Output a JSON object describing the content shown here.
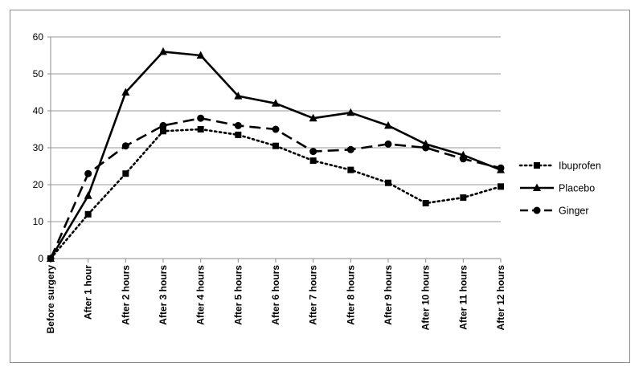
{
  "chart_data": {
    "type": "line",
    "title": "",
    "xlabel": "",
    "ylabel": "",
    "categories": [
      "Before surgery",
      "After 1 hour",
      "After 2 hours",
      "After 3 hours",
      "After 4 hours",
      "After 5 hours",
      "After 6 hours",
      "After 7 hours",
      "After 8 hours",
      "After 9 hours",
      "After 10 hours",
      "After 11 hours",
      "After 12 hours"
    ],
    "ylim": [
      0,
      60
    ],
    "yticks": [
      "0",
      "10",
      "20",
      "30",
      "40",
      "50",
      "60"
    ],
    "grid": true,
    "legend_position": "right",
    "series": [
      {
        "name": "Ibuprofen",
        "line_style": "dotted",
        "marker": "square",
        "color": "#000000",
        "values": [
          0,
          12,
          23,
          34.5,
          35,
          33.5,
          30.5,
          26.5,
          24,
          20.5,
          15,
          16.5,
          19.5
        ]
      },
      {
        "name": "Placebo",
        "line_style": "solid",
        "marker": "triangle",
        "color": "#000000",
        "values": [
          0,
          17,
          45,
          56,
          55,
          44,
          42,
          38,
          39.5,
          36,
          31,
          28,
          24
        ]
      },
      {
        "name": "Ginger",
        "line_style": "dashed",
        "marker": "circle",
        "color": "#000000",
        "values": [
          0,
          23,
          30.5,
          36,
          38,
          36,
          35,
          29,
          29.5,
          31,
          30,
          27,
          24.5
        ]
      }
    ]
  }
}
